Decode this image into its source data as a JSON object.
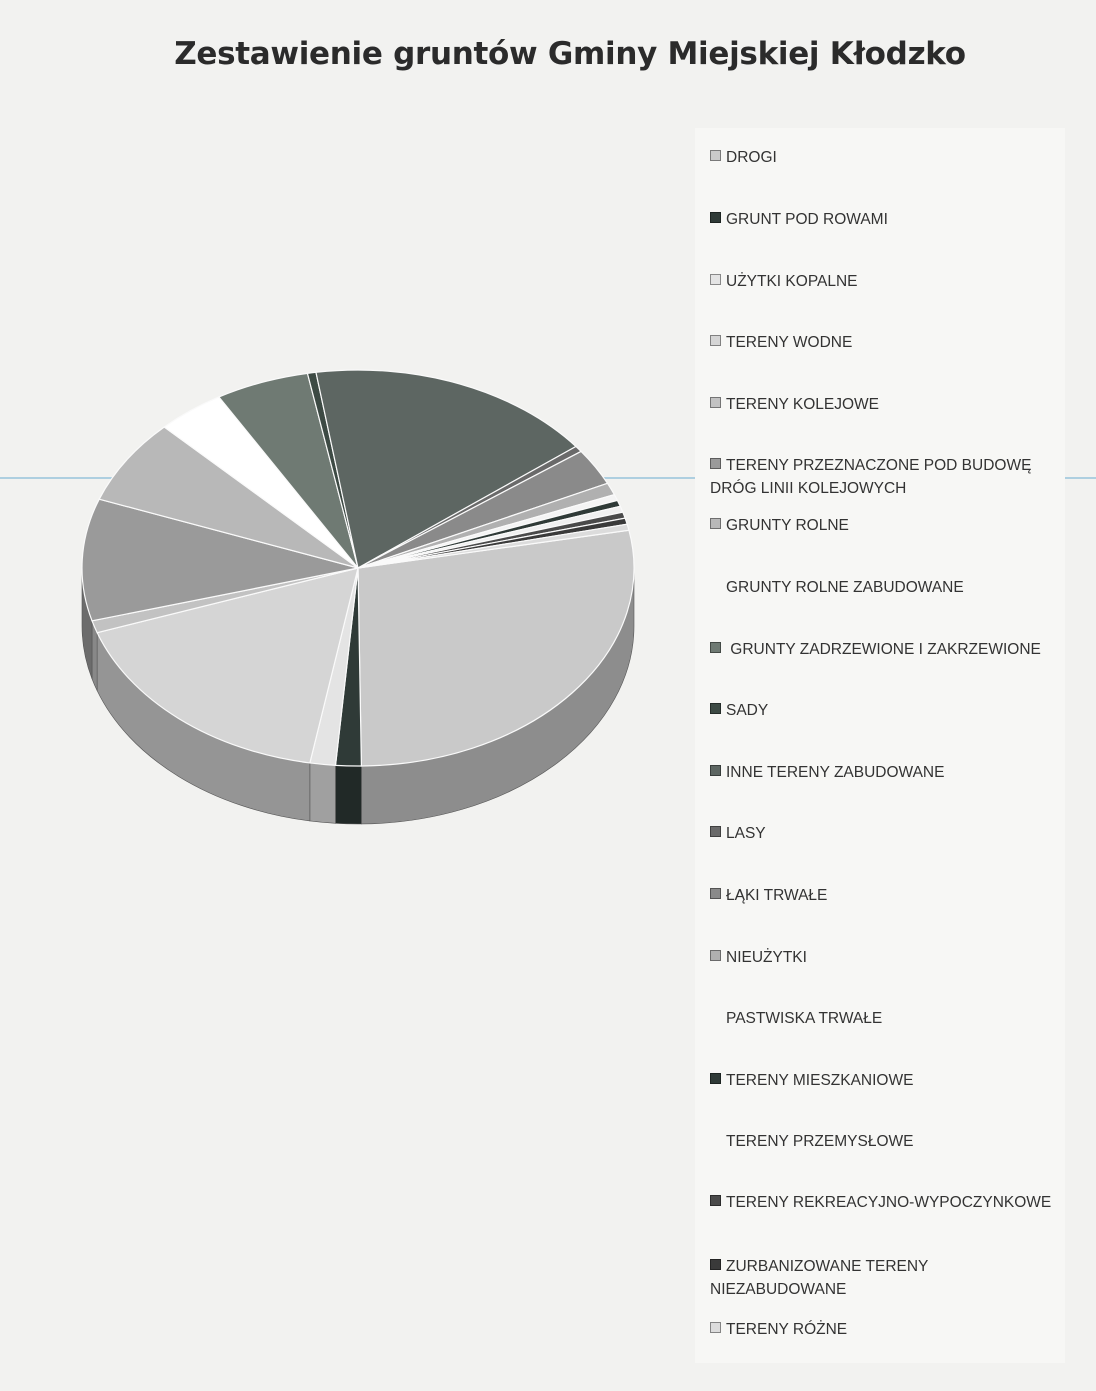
{
  "chart_data": {
    "type": "pie",
    "title": "Zestawienie gruntów Gminy Miejskiej Kłodzko",
    "legend_position": "right",
    "slices": [
      {
        "label": "DROGI",
        "value": 28,
        "color": "#c9c9c9"
      },
      {
        "label": "GRUNT POD ROWAMI",
        "value": 1.5,
        "color": "#2f3a37"
      },
      {
        "label": "UŻYTKI KOPALNE",
        "value": 1.5,
        "color": "#e4e4e4"
      },
      {
        "label": "TERENY WODNE",
        "value": 17,
        "color": "#d5d5d5"
      },
      {
        "label": "TERENY KOLEJOWE",
        "value": 1,
        "color": "#c2c2c2"
      },
      {
        "label": "TERENY PRZEZNACZONE  POD BUDOWĘ DRÓG LINII KOLEJOWYCH",
        "value": 10,
        "color": "#9a9a9a"
      },
      {
        "label": "GRUNTY ROLNE",
        "value": 7,
        "color": "#b8b8b8"
      },
      {
        "label": "GRUNTY ROLNE ZABUDOWANE",
        "value": 4,
        "color": "#ffffff"
      },
      {
        "label": " GRUNTY ZADRZEWIONE I ZAKRZEWIONE",
        "value": 5.5,
        "color": "#6f7a73"
      },
      {
        "label": "SADY",
        "value": 0.5,
        "color": "#3d4a44"
      },
      {
        "label": "INNE TERENY ZABUDOWANE",
        "value": 17,
        "color": "#5d6662"
      },
      {
        "label": "LASY",
        "value": 0.5,
        "color": "#6a6a6a"
      },
      {
        "label": "ŁĄKI TRWAŁE",
        "value": 3,
        "color": "#8a8a8a"
      },
      {
        "label": "NIEUŻYTKI",
        "value": 1,
        "color": "#b0b0b0"
      },
      {
        "label": "PASTWISKA TRWAŁE",
        "value": 0.5,
        "color": "#f4f4f4"
      },
      {
        "label": "TERENY MIESZKANIOWE",
        "value": 0.5,
        "color": "#2f3a37"
      },
      {
        "label": "TERENY PRZEMYSŁOWE",
        "value": 0.5,
        "color": "#f0f0f0"
      },
      {
        "label": "TERENY REKREACYJNO-WYPOCZYNKOWE",
        "value": 0.5,
        "color": "#4a4a4a"
      },
      {
        "label": "ZURBANIZOWANE TERENY NIEZABUDOWANE",
        "value": 0.5,
        "color": "#3a3a3a"
      },
      {
        "label": "TERENY  RÓŻNE",
        "value": 0.5,
        "color": "#dcdcdc"
      }
    ]
  }
}
